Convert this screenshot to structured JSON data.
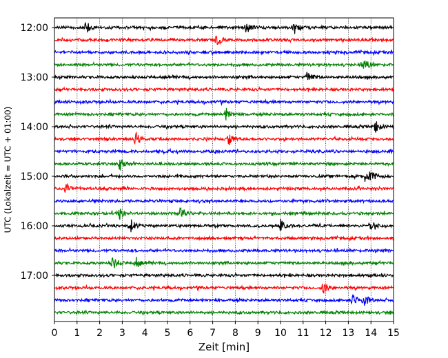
{
  "chart_data": {
    "type": "line",
    "title": "",
    "xlabel": "Zeit  [min]",
    "ylabel": "UTC (Lokalzeit = UTC + 01:00)",
    "xlim": [
      0,
      15
    ],
    "x_ticks": [
      "0",
      "1",
      "2",
      "3",
      "4",
      "5",
      "6",
      "7",
      "8",
      "9",
      "10",
      "11",
      "12",
      "13",
      "14",
      "15"
    ],
    "y_tick_labels": [
      "12:00",
      "13:00",
      "14:00",
      "15:00",
      "16:00",
      "17:00"
    ],
    "trace_start_times": [
      "12:00",
      "12:15",
      "12:30",
      "12:45",
      "13:00",
      "13:15",
      "13:30",
      "13:45",
      "14:00",
      "14:15",
      "14:30",
      "14:45",
      "15:00",
      "15:15",
      "15:30",
      "15:45",
      "16:00",
      "16:15",
      "16:30",
      "16:45",
      "17:00",
      "17:15",
      "17:30",
      "17:45"
    ],
    "trace_colors": [
      "#000000",
      "#ff0000",
      "#0000ff",
      "#008000"
    ],
    "vertical_grid": "dotted",
    "events": [
      {
        "trace": "12:00",
        "minute": 1.4
      },
      {
        "trace": "12:00",
        "minute": 8.5
      },
      {
        "trace": "12:00",
        "minute": 10.6
      },
      {
        "trace": "12:15",
        "minute": 7.2
      },
      {
        "trace": "12:45",
        "minute": 13.7
      },
      {
        "trace": "13:00",
        "minute": 11.2
      },
      {
        "trace": "13:45",
        "minute": 7.6
      },
      {
        "trace": "14:00",
        "minute": 14.2
      },
      {
        "trace": "14:15",
        "minute": 7.7
      },
      {
        "trace": "14:15",
        "minute": 3.6
      },
      {
        "trace": "14:45",
        "minute": 2.9
      },
      {
        "trace": "15:00",
        "minute": 13.7
      },
      {
        "trace": "15:00",
        "minute": 14.0
      },
      {
        "trace": "15:15",
        "minute": 0.5
      },
      {
        "trace": "15:45",
        "minute": 2.9
      },
      {
        "trace": "15:45",
        "minute": 5.6
      },
      {
        "trace": "16:00",
        "minute": 3.4
      },
      {
        "trace": "16:00",
        "minute": 10.0
      },
      {
        "trace": "16:00",
        "minute": 14.0
      },
      {
        "trace": "16:45",
        "minute": 2.6
      },
      {
        "trace": "16:45",
        "minute": 3.6
      },
      {
        "trace": "17:15",
        "minute": 11.9
      },
      {
        "trace": "17:30",
        "minute": 13.2
      },
      {
        "trace": "17:30",
        "minute": 13.7
      }
    ]
  }
}
